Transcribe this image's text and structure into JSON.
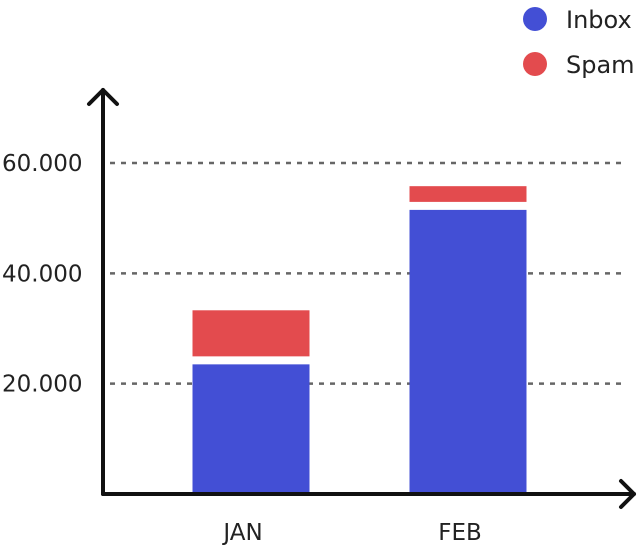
{
  "chart_data": {
    "type": "bar",
    "stacked": true,
    "categories": [
      "JAN",
      "FEB"
    ],
    "series": [
      {
        "name": "Inbox",
        "color": "#434fd5",
        "values": [
          23500,
          51500
        ]
      },
      {
        "name": "Spam",
        "color": "#e34b4e",
        "values": [
          9800,
          4300
        ]
      }
    ],
    "ylim": [
      0,
      60000
    ],
    "yticks": [
      20000,
      40000,
      60000
    ],
    "ytick_labels": [
      "20.000",
      "40.000",
      "60.000"
    ],
    "grid": true,
    "legend_position": "top-right"
  }
}
